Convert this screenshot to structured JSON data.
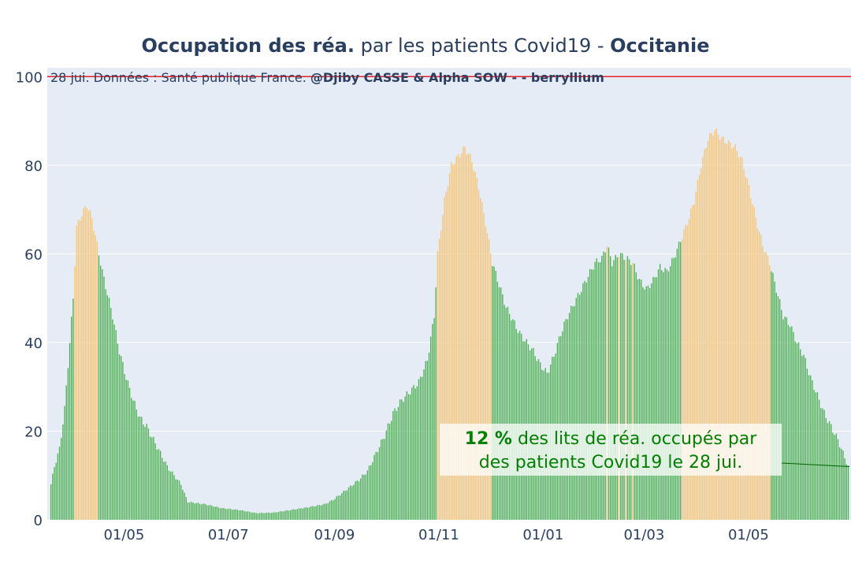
{
  "chart_data": {
    "type": "bar",
    "title_parts": [
      {
        "text": "Occupation des réa.",
        "bold": true
      },
      {
        "text": " par les patients Covid19 - ",
        "bold": false
      },
      {
        "text": "Occitanie",
        "bold": true
      }
    ],
    "subtitle_parts": [
      {
        "text": "28 jui. Données : Santé publique France. ",
        "bold": false
      },
      {
        "text": "@Djiby CASSE & Alpha SOW -  - berryllium",
        "bold": true
      }
    ],
    "xlabel": "",
    "ylabel": "",
    "ylim": [
      0,
      102
    ],
    "yticks": [
      0,
      20,
      40,
      60,
      80,
      100
    ],
    "xticks": [
      "01/05",
      "01/07",
      "01/09",
      "01/11",
      "01/01",
      "01/03",
      "01/05"
    ],
    "xtick_day_index": [
      43,
      104,
      166,
      227,
      288,
      347,
      408
    ],
    "reference_line": {
      "y": 100,
      "color": "#e8202a"
    },
    "colors": {
      "normal": "#2ca02c",
      "highlight": "#f5b041",
      "normal_bar": "#4caf50",
      "highlight_bar": "#f8c471"
    },
    "num_days": 467,
    "highlight_ranges": [
      [
        14,
        27
      ],
      [
        226,
        257
      ],
      [
        325,
        325
      ],
      [
        332,
        332
      ],
      [
        336,
        336
      ],
      [
        340,
        340
      ],
      [
        369,
        420
      ]
    ],
    "keypoints": [
      [
        0,
        8
      ],
      [
        2,
        12
      ],
      [
        5,
        16
      ],
      [
        8,
        25
      ],
      [
        11,
        40
      ],
      [
        13,
        50
      ],
      [
        15,
        66
      ],
      [
        18,
        69
      ],
      [
        21,
        71
      ],
      [
        24,
        68
      ],
      [
        27,
        62
      ],
      [
        30,
        56
      ],
      [
        33,
        51
      ],
      [
        36,
        46
      ],
      [
        40,
        38
      ],
      [
        44,
        32
      ],
      [
        48,
        27
      ],
      [
        52,
        23
      ],
      [
        56,
        21
      ],
      [
        60,
        18
      ],
      [
        64,
        15
      ],
      [
        68,
        12
      ],
      [
        72,
        10
      ],
      [
        76,
        8
      ],
      [
        80,
        4
      ],
      [
        90,
        3.5
      ],
      [
        100,
        2.6
      ],
      [
        110,
        2.2
      ],
      [
        120,
        1.5
      ],
      [
        130,
        1.6
      ],
      [
        140,
        2.2
      ],
      [
        150,
        2.8
      ],
      [
        160,
        3.5
      ],
      [
        165,
        4.5
      ],
      [
        170,
        6
      ],
      [
        175,
        7.5
      ],
      [
        180,
        9
      ],
      [
        185,
        11
      ],
      [
        190,
        15
      ],
      [
        195,
        19
      ],
      [
        200,
        24
      ],
      [
        205,
        27
      ],
      [
        210,
        29
      ],
      [
        215,
        31
      ],
      [
        220,
        36
      ],
      [
        224,
        46
      ],
      [
        226,
        60
      ],
      [
        230,
        72
      ],
      [
        234,
        80
      ],
      [
        238,
        82
      ],
      [
        242,
        84
      ],
      [
        246,
        81
      ],
      [
        250,
        75
      ],
      [
        254,
        67
      ],
      [
        258,
        58
      ],
      [
        262,
        53
      ],
      [
        266,
        48
      ],
      [
        270,
        45
      ],
      [
        274,
        42
      ],
      [
        278,
        40
      ],
      [
        282,
        38
      ],
      [
        286,
        35
      ],
      [
        290,
        33
      ],
      [
        294,
        37
      ],
      [
        298,
        42
      ],
      [
        302,
        46
      ],
      [
        306,
        49
      ],
      [
        310,
        52
      ],
      [
        314,
        55
      ],
      [
        318,
        58
      ],
      [
        322,
        59
      ],
      [
        325,
        62
      ],
      [
        328,
        58
      ],
      [
        332,
        60
      ],
      [
        336,
        59
      ],
      [
        340,
        58
      ],
      [
        344,
        54
      ],
      [
        348,
        52
      ],
      [
        352,
        54
      ],
      [
        356,
        57
      ],
      [
        360,
        56
      ],
      [
        364,
        59
      ],
      [
        368,
        63
      ],
      [
        372,
        67
      ],
      [
        376,
        72
      ],
      [
        380,
        80
      ],
      [
        384,
        86
      ],
      [
        388,
        88
      ],
      [
        392,
        86
      ],
      [
        396,
        85
      ],
      [
        400,
        84
      ],
      [
        404,
        81
      ],
      [
        408,
        75
      ],
      [
        412,
        68
      ],
      [
        416,
        62
      ],
      [
        420,
        58
      ],
      [
        424,
        52
      ],
      [
        428,
        46
      ],
      [
        432,
        44
      ],
      [
        436,
        40
      ],
      [
        440,
        37
      ],
      [
        444,
        32
      ],
      [
        448,
        28
      ],
      [
        452,
        24
      ],
      [
        456,
        21
      ],
      [
        460,
        18
      ],
      [
        464,
        14
      ],
      [
        466,
        12
      ]
    ],
    "annotation": {
      "value_text": "12  %",
      "line1_rest": " des lits de réa. occupés par",
      "line2": "des patients Covid19 le 28 jui.",
      "point_value": 12
    }
  }
}
